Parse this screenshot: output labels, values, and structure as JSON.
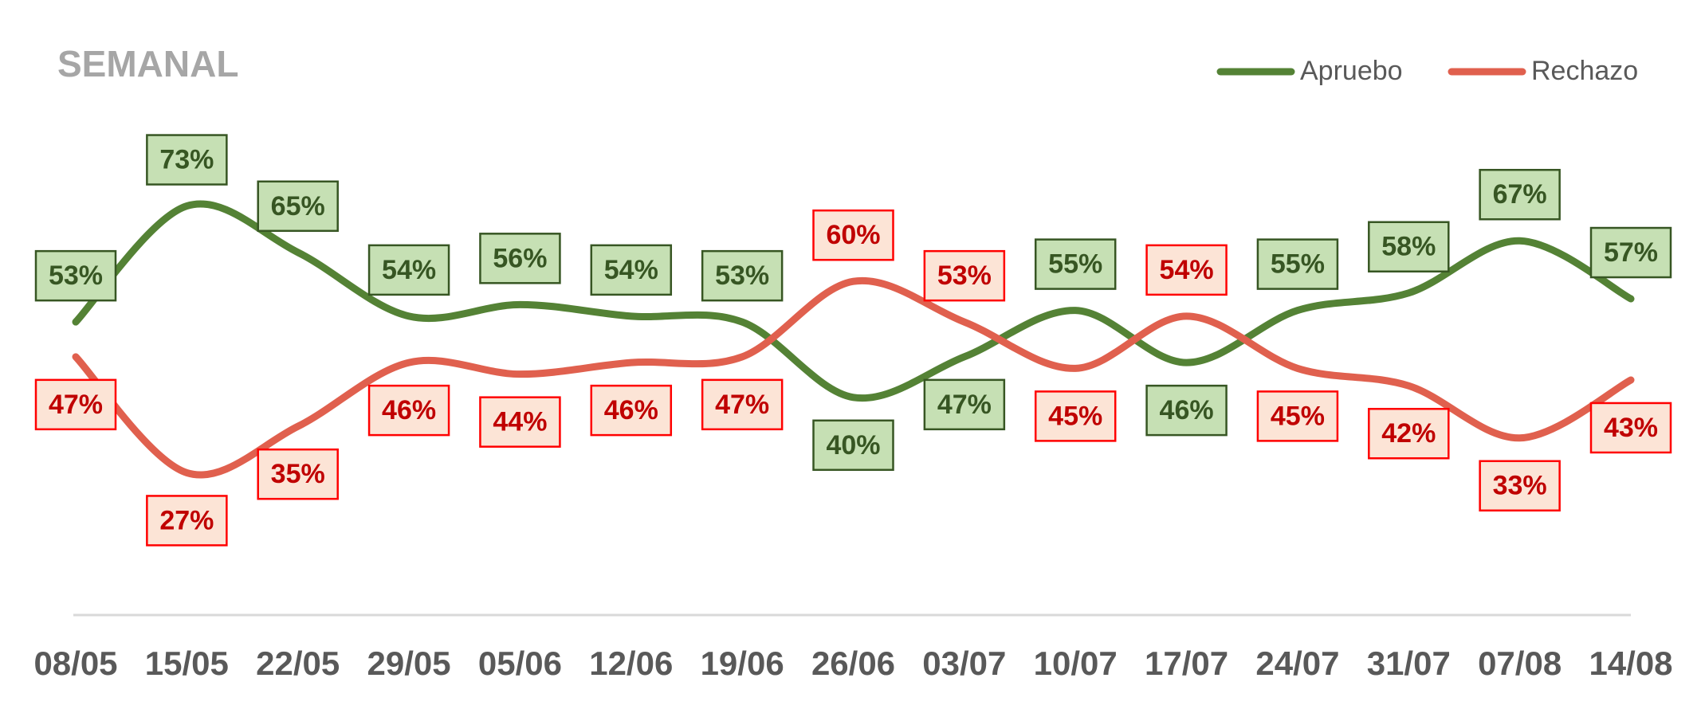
{
  "chart_data": {
    "type": "line",
    "title": "SEMANAL",
    "categories": [
      "08/05",
      "15/05",
      "22/05",
      "29/05",
      "05/06",
      "12/06",
      "19/06",
      "26/06",
      "03/07",
      "10/07",
      "17/07",
      "24/07",
      "31/07",
      "07/08",
      "14/08"
    ],
    "ylim": [
      0,
      100
    ],
    "legend": "top-right",
    "series": [
      {
        "name": "Apruebo",
        "color": "#548235",
        "label_fill": "#c6e0b4",
        "label_stroke": "#375623",
        "label_text": "#375623",
        "values": [
          53,
          73,
          65,
          54,
          56,
          54,
          53,
          40,
          47,
          55,
          46,
          55,
          58,
          67,
          57
        ],
        "value_labels": [
          "53%",
          "73%",
          "65%",
          "54%",
          "56%",
          "54%",
          "53%",
          "40%",
          "47%",
          "55%",
          "46%",
          "55%",
          "58%",
          "67%",
          "57%"
        ]
      },
      {
        "name": "Rechazo",
        "color": "#e0604e",
        "label_fill": "#fce4d6",
        "label_stroke": "#ff0000",
        "label_text": "#c00000",
        "values": [
          47,
          27,
          35,
          46,
          44,
          46,
          47,
          60,
          53,
          45,
          54,
          45,
          42,
          33,
          43
        ],
        "value_labels": [
          "47%",
          "27%",
          "35%",
          "46%",
          "44%",
          "46%",
          "47%",
          "60%",
          "53%",
          "45%",
          "54%",
          "45%",
          "42%",
          "33%",
          "43%"
        ]
      }
    ]
  }
}
